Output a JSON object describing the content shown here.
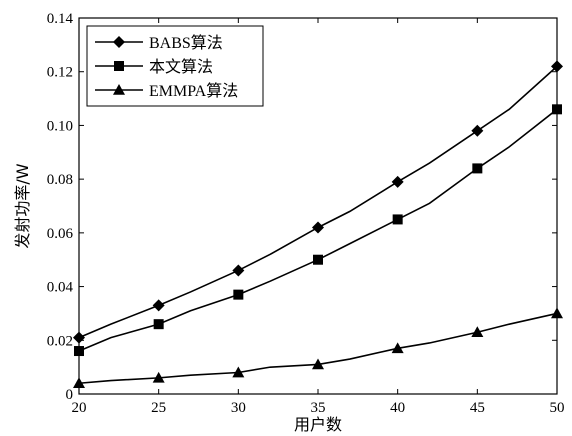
{
  "chart_data": {
    "type": "line",
    "xlabel": "用户数",
    "ylabel": "发射功率/W",
    "xlim": [
      20,
      50
    ],
    "ylim": [
      0,
      0.14
    ],
    "x_ticks": [
      20,
      25,
      30,
      35,
      40,
      45,
      50
    ],
    "y_ticks": [
      0,
      0.02,
      0.04,
      0.06,
      0.08,
      0.1,
      0.12,
      0.14
    ],
    "y_tick_labels": [
      "0",
      "0.02",
      "0.04",
      "0.06",
      "0.08",
      "0.10",
      "0.12",
      "0.14"
    ],
    "grid": false,
    "legend_position": "top-left",
    "series": [
      {
        "name": "BABS算法",
        "marker": "diamond",
        "x": [
          20,
          25,
          30,
          35,
          40,
          45,
          50
        ],
        "values": [
          0.021,
          0.033,
          0.046,
          0.062,
          0.079,
          0.098,
          0.122
        ],
        "line_x": [
          20,
          22,
          25,
          27,
          30,
          32,
          35,
          37,
          40,
          42,
          45,
          47,
          50
        ],
        "line_values": [
          0.021,
          0.026,
          0.033,
          0.038,
          0.046,
          0.052,
          0.062,
          0.068,
          0.079,
          0.086,
          0.098,
          0.106,
          0.122
        ]
      },
      {
        "name": "本文算法",
        "marker": "square",
        "x": [
          20,
          25,
          30,
          35,
          40,
          45,
          50
        ],
        "values": [
          0.016,
          0.026,
          0.037,
          0.05,
          0.065,
          0.084,
          0.106
        ],
        "line_x": [
          20,
          22,
          25,
          27,
          30,
          32,
          35,
          37,
          40,
          42,
          45,
          47,
          50
        ],
        "line_values": [
          0.016,
          0.021,
          0.026,
          0.031,
          0.037,
          0.042,
          0.05,
          0.056,
          0.065,
          0.071,
          0.084,
          0.092,
          0.106
        ]
      },
      {
        "name": "EMMPA算法",
        "marker": "triangle",
        "x": [
          20,
          25,
          30,
          35,
          40,
          45,
          50
        ],
        "values": [
          0.004,
          0.006,
          0.008,
          0.011,
          0.017,
          0.023,
          0.03
        ],
        "line_x": [
          20,
          22,
          25,
          27,
          30,
          32,
          35,
          37,
          40,
          42,
          45,
          47,
          50
        ],
        "line_values": [
          0.004,
          0.005,
          0.006,
          0.007,
          0.008,
          0.01,
          0.011,
          0.013,
          0.017,
          0.019,
          0.023,
          0.026,
          0.03
        ]
      }
    ]
  }
}
